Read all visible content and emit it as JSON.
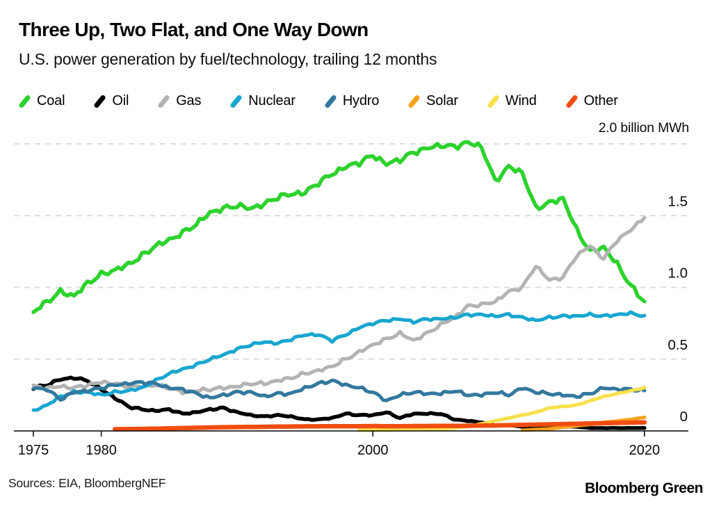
{
  "header": {
    "title": "Three Up, Two Flat, and One Way Down",
    "subtitle": "U.S. power generation by fuel/technology, trailing 12 months"
  },
  "footer": {
    "sources": "Sources: EIA, BloombergNEF",
    "brand": "Bloomberg Green"
  },
  "chart_data": {
    "type": "line",
    "title": "Three Up, Two Flat, and One Way Down",
    "subtitle": "U.S. power generation by fuel/technology, trailing 12 months",
    "unit_label": "2.0 billion MWh",
    "ylabel": "billion MWh",
    "ylim": [
      0,
      2.05
    ],
    "x_start": 1975,
    "x_end": 2020,
    "grid": "dashed horizontal",
    "legend_position": "top",
    "y_gridlines": [
      0.5,
      1.0,
      1.5,
      2.0
    ],
    "y_ticks": [
      {
        "label": "1.5",
        "value": 1.5
      },
      {
        "label": "1.0",
        "value": 1.0
      },
      {
        "label": "0.5",
        "value": 0.5
      },
      {
        "label": "0",
        "value": 0
      }
    ],
    "x_ticks": [
      {
        "label": "1975",
        "value": 1975
      },
      {
        "label": "1980",
        "value": 1980
      },
      {
        "label": "2000",
        "value": 2000
      },
      {
        "label": "2020",
        "value": 2020
      }
    ],
    "series": [
      {
        "name": "Coal",
        "color": "#2dd22d",
        "start_year": 1975,
        "values": [
          0.83,
          0.9,
          0.97,
          0.94,
          1.03,
          1.09,
          1.12,
          1.16,
          1.22,
          1.29,
          1.33,
          1.38,
          1.44,
          1.52,
          1.55,
          1.57,
          1.55,
          1.58,
          1.63,
          1.65,
          1.66,
          1.73,
          1.79,
          1.84,
          1.87,
          1.92,
          1.86,
          1.89,
          1.94,
          1.97,
          1.99,
          1.98,
          2.01,
          1.98,
          1.74,
          1.84,
          1.8,
          1.55,
          1.59,
          1.62,
          1.4,
          1.25,
          1.28,
          1.16,
          1.01,
          0.9
        ]
      },
      {
        "name": "Oil",
        "color": "#000000",
        "start_year": 1975,
        "values": [
          0.3,
          0.32,
          0.36,
          0.37,
          0.35,
          0.29,
          0.23,
          0.17,
          0.15,
          0.14,
          0.15,
          0.12,
          0.13,
          0.15,
          0.16,
          0.13,
          0.11,
          0.1,
          0.11,
          0.1,
          0.08,
          0.08,
          0.09,
          0.12,
          0.11,
          0.11,
          0.13,
          0.09,
          0.12,
          0.12,
          0.12,
          0.08,
          0.07,
          0.06,
          0.04,
          0.04,
          0.03,
          0.02,
          0.03,
          0.03,
          0.03,
          0.02,
          0.02,
          0.02,
          0.02,
          0.02
        ]
      },
      {
        "name": "Gas",
        "color": "#b3b3b3",
        "start_year": 1975,
        "values": [
          0.31,
          0.3,
          0.31,
          0.3,
          0.32,
          0.34,
          0.33,
          0.31,
          0.31,
          0.32,
          0.3,
          0.27,
          0.28,
          0.29,
          0.3,
          0.31,
          0.33,
          0.33,
          0.35,
          0.37,
          0.4,
          0.42,
          0.45,
          0.5,
          0.55,
          0.6,
          0.64,
          0.68,
          0.63,
          0.68,
          0.74,
          0.79,
          0.87,
          0.88,
          0.9,
          0.97,
          1.0,
          1.15,
          1.05,
          1.07,
          1.22,
          1.29,
          1.2,
          1.33,
          1.4,
          1.49
        ]
      },
      {
        "name": "Nuclear",
        "color": "#18a6cf",
        "start_year": 1975,
        "values": [
          0.14,
          0.18,
          0.24,
          0.27,
          0.27,
          0.25,
          0.27,
          0.28,
          0.3,
          0.35,
          0.4,
          0.43,
          0.46,
          0.5,
          0.53,
          0.57,
          0.6,
          0.62,
          0.61,
          0.64,
          0.67,
          0.67,
          0.63,
          0.67,
          0.72,
          0.75,
          0.77,
          0.78,
          0.76,
          0.78,
          0.78,
          0.79,
          0.81,
          0.81,
          0.8,
          0.81,
          0.79,
          0.77,
          0.79,
          0.8,
          0.8,
          0.81,
          0.8,
          0.81,
          0.82,
          0.8
        ]
      },
      {
        "name": "Hydro",
        "color": "#33789e",
        "start_year": 1975,
        "values": [
          0.3,
          0.29,
          0.22,
          0.27,
          0.28,
          0.3,
          0.32,
          0.33,
          0.34,
          0.33,
          0.3,
          0.29,
          0.26,
          0.23,
          0.25,
          0.27,
          0.27,
          0.24,
          0.26,
          0.26,
          0.3,
          0.33,
          0.35,
          0.32,
          0.3,
          0.27,
          0.21,
          0.25,
          0.27,
          0.26,
          0.26,
          0.28,
          0.25,
          0.25,
          0.27,
          0.25,
          0.3,
          0.27,
          0.26,
          0.25,
          0.24,
          0.26,
          0.3,
          0.29,
          0.29,
          0.28
        ]
      },
      {
        "name": "Solar",
        "color": "#f6a21e",
        "start_year": 2011,
        "values": [
          0.005,
          0.01,
          0.015,
          0.025,
          0.035,
          0.045,
          0.06,
          0.07,
          0.08,
          0.095
        ]
      },
      {
        "name": "Wind",
        "color": "#f8e04b",
        "start_year": 1999,
        "values": [
          0.005,
          0.006,
          0.007,
          0.01,
          0.011,
          0.014,
          0.015,
          0.02,
          0.03,
          0.05,
          0.07,
          0.09,
          0.11,
          0.13,
          0.16,
          0.17,
          0.18,
          0.21,
          0.24,
          0.26,
          0.28,
          0.3
        ]
      },
      {
        "name": "Other",
        "color": "#f04e11",
        "start_year": 1981,
        "values": [
          0.012,
          0.013,
          0.014,
          0.016,
          0.018,
          0.02,
          0.022,
          0.024,
          0.026,
          0.027,
          0.028,
          0.029,
          0.03,
          0.031,
          0.032,
          0.032,
          0.033,
          0.033,
          0.033,
          0.034,
          0.033,
          0.033,
          0.034,
          0.034,
          0.035,
          0.035,
          0.036,
          0.037,
          0.038,
          0.04,
          0.042,
          0.044,
          0.046,
          0.048,
          0.05,
          0.052,
          0.054,
          0.056,
          0.058,
          0.06
        ]
      }
    ]
  }
}
